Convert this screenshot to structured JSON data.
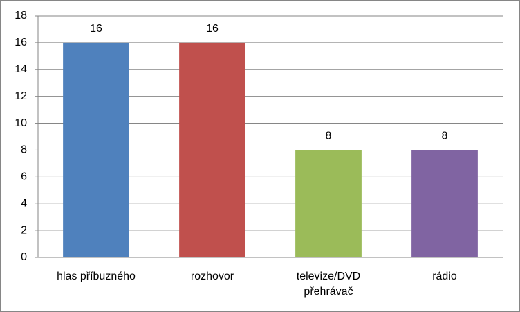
{
  "chart_data": {
    "type": "bar",
    "categories": [
      "hlas příbuzného",
      "rozhovor",
      "televize/DVD přehrávač",
      "rádio"
    ],
    "values": [
      16,
      16,
      8,
      8
    ],
    "colors": [
      "#4f81bd",
      "#c0504d",
      "#9bbb59",
      "#8064a2"
    ],
    "ylim": [
      0,
      18
    ],
    "yticks": [
      0,
      2,
      4,
      6,
      8,
      10,
      12,
      14,
      16,
      18
    ],
    "grid": true
  }
}
